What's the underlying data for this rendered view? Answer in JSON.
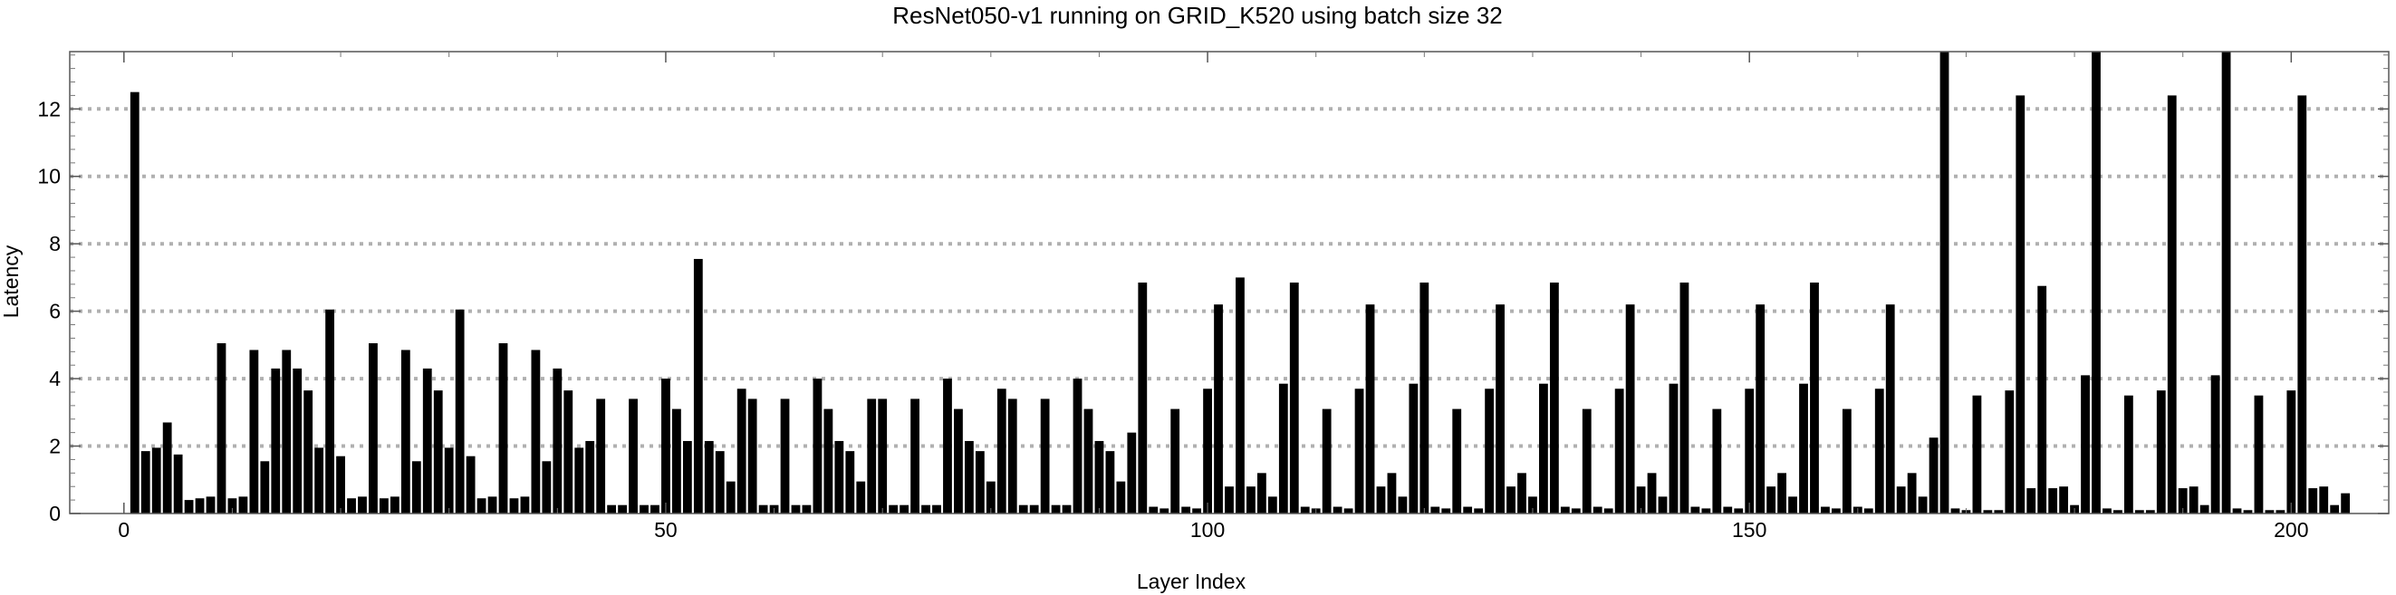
{
  "chart_data": {
    "type": "bar",
    "title": "ResNet050-v1 running on GRID_K520 using batch size 32",
    "xlabel": "Layer Index",
    "ylabel": "Latency",
    "xlim": [
      -5,
      209
    ],
    "ylim": [
      0,
      13.7
    ],
    "x_ticks": [
      0,
      50,
      100,
      150,
      200
    ],
    "y_ticks": [
      0,
      2,
      4,
      6,
      8,
      10,
      12
    ],
    "grid": {
      "horizontal": true,
      "style": "dotted"
    },
    "bar_color": "#000000",
    "x_start": 1,
    "values": [
      12.5,
      1.85,
      1.95,
      2.7,
      1.75,
      0.4,
      0.45,
      0.5,
      5.05,
      0.45,
      0.5,
      4.85,
      1.55,
      4.3,
      4.85,
      4.3,
      3.65,
      1.95,
      6.05,
      1.7,
      0.45,
      0.5,
      5.05,
      0.45,
      0.5,
      4.85,
      1.55,
      4.3,
      3.65,
      1.95,
      6.05,
      1.7,
      0.45,
      0.5,
      5.05,
      0.45,
      0.5,
      4.85,
      1.55,
      4.3,
      3.65,
      1.95,
      2.15,
      3.4,
      0.25,
      0.25,
      3.4,
      0.25,
      0.25,
      4.0,
      3.1,
      2.15,
      7.55,
      2.15,
      1.85,
      0.95,
      3.7,
      3.4,
      0.25,
      0.25,
      3.4,
      0.25,
      0.25,
      4.0,
      3.1,
      2.15,
      1.85,
      0.95,
      3.4,
      3.4,
      0.25,
      0.25,
      3.4,
      0.25,
      0.25,
      4.0,
      3.1,
      2.15,
      1.85,
      0.95,
      3.7,
      3.4,
      0.25,
      0.25,
      3.4,
      0.25,
      0.25,
      4.0,
      3.1,
      2.15,
      1.85,
      0.95,
      2.4,
      6.85,
      0.2,
      0.15,
      3.1,
      0.2,
      0.15,
      3.7,
      6.2,
      0.8,
      7.0,
      0.8,
      1.2,
      0.5,
      3.85,
      6.85,
      0.2,
      0.15,
      3.1,
      0.2,
      0.15,
      3.7,
      6.2,
      0.8,
      1.2,
      0.5,
      3.85,
      6.85,
      0.2,
      0.15,
      3.1,
      0.2,
      0.15,
      3.7,
      6.2,
      0.8,
      1.2,
      0.5,
      3.85,
      6.85,
      0.2,
      0.15,
      3.1,
      0.2,
      0.15,
      3.7,
      6.2,
      0.8,
      1.2,
      0.5,
      3.85,
      6.85,
      0.2,
      0.15,
      3.1,
      0.2,
      0.15,
      3.7,
      6.2,
      0.8,
      1.2,
      0.5,
      3.85,
      6.85,
      0.2,
      0.15,
      3.1,
      0.2,
      0.15,
      3.7,
      6.2,
      0.8,
      1.2,
      0.5,
      2.25,
      13.7,
      0.15,
      0.1,
      3.5,
      0.1,
      0.1,
      3.65,
      12.4,
      0.75,
      6.75,
      0.75,
      0.8,
      0.25,
      4.1,
      13.7,
      0.15,
      0.1,
      3.5,
      0.1,
      0.1,
      3.65,
      12.4,
      0.75,
      0.8,
      0.25,
      4.1,
      13.7,
      0.15,
      0.1,
      3.5,
      0.1,
      0.1,
      3.65,
      12.4,
      0.75,
      0.8,
      0.25,
      0.6
    ]
  }
}
